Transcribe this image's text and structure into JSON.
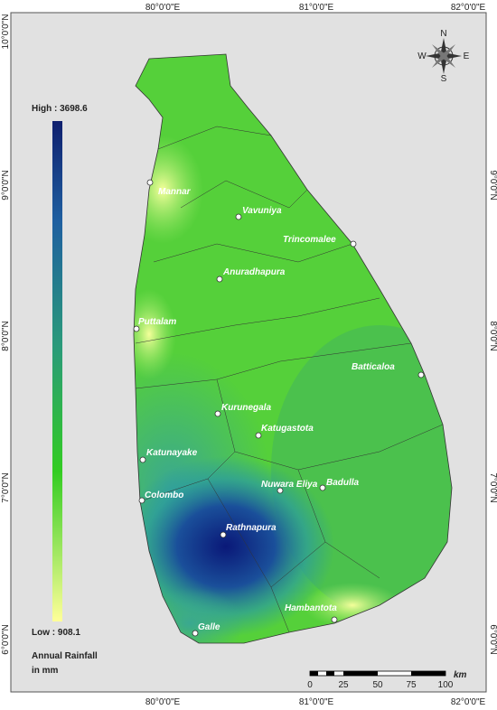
{
  "map": {
    "lon_labels": [
      "80°0'0\"E",
      "81°0'0\"E",
      "82°0'0\"E"
    ],
    "lat_labels": [
      "10°0'0\"N",
      "9°0'0\"N",
      "8°0'0\"N",
      "7°0'0\"N",
      "6°0'0\"N"
    ],
    "compass": [
      "N",
      "E",
      "S",
      "W"
    ],
    "cities": [
      "Mannar",
      "Vavuniya",
      "Trincomalee",
      "Anuradhapura",
      "Puttalam",
      "Batticaloa",
      "Kurunegala",
      "Katugastota",
      "Katunayake",
      "Nuwara Eliya",
      "Badulla",
      "Colombo",
      "Rathnapura",
      "Hambantota",
      "Galle"
    ],
    "legend": {
      "high": "High : 3698.6",
      "low": "Low : 908.1",
      "title_line1": "Annual Rainfall",
      "title_line2": "in mm"
    },
    "scale": {
      "labels": [
        0,
        25,
        50,
        75,
        100
      ],
      "unit": "km"
    }
  }
}
